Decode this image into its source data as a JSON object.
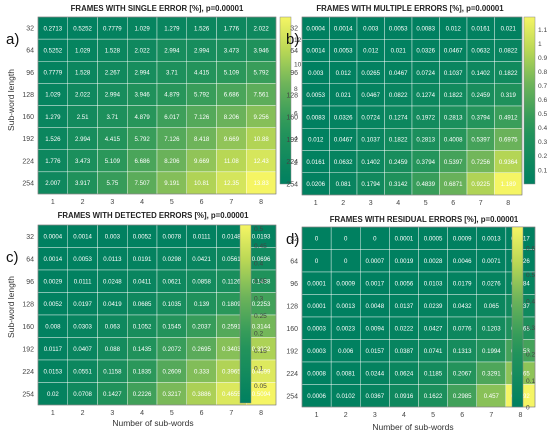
{
  "chart_data": [
    {
      "type": "heatmap",
      "panel_label": "a)",
      "title": "FRAMES WITH SINGLE ERROR [%], p=0.00001",
      "ylabel": "Sub-word length",
      "xlabel": "",
      "x_categories": [
        "1",
        "2",
        "3",
        "4",
        "5",
        "6",
        "7",
        "8"
      ],
      "y_categories": [
        "32",
        "64",
        "96",
        "128",
        "160",
        "192",
        "224",
        "254"
      ],
      "values": [
        [
          "0.2713",
          "0.5252",
          "0.7779",
          "1.029",
          "1.279",
          "1.526",
          "1.776",
          "2.022"
        ],
        [
          "0.5252",
          "1.029",
          "1.528",
          "2.022",
          "2.994",
          "2.994",
          "3.473",
          "3.946"
        ],
        [
          "0.7779",
          "1.528",
          "2.267",
          "2.994",
          "3.71",
          "4.415",
          "5.109",
          "5.792"
        ],
        [
          "1.029",
          "2.022",
          "2.994",
          "3.946",
          "4.879",
          "5.792",
          "6.686",
          "7.561"
        ],
        [
          "1.279",
          "2.51",
          "3.71",
          "4.879",
          "6.017",
          "7.126",
          "8.206",
          "9.256"
        ],
        [
          "1.526",
          "2.994",
          "4.415",
          "5.792",
          "7.126",
          "8.418",
          "9.669",
          "10.88"
        ],
        [
          "1.776",
          "3.473",
          "5.109",
          "6.686",
          "8.206",
          "9.669",
          "11.08",
          "12.43"
        ],
        [
          "2.007",
          "3.917",
          "5.75",
          "7.507",
          "9.191",
          "10.81",
          "12.35",
          "13.83"
        ]
      ],
      "colorbar_ticks": [
        "2",
        "4",
        "6",
        "8",
        "10",
        "12"
      ],
      "colorbar_range": [
        0.27,
        13.83
      ]
    },
    {
      "type": "heatmap",
      "panel_label": "b)",
      "title": "FRAMES WITH MULTIPLE ERRORS [%], p=0.00001",
      "ylabel": "",
      "xlabel": "",
      "x_categories": [
        "1",
        "2",
        "3",
        "4",
        "5",
        "6",
        "7",
        "8"
      ],
      "y_categories": [
        "32",
        "64",
        "96",
        "128",
        "160",
        "192",
        "224",
        "254"
      ],
      "values": [
        [
          "0.0004",
          "0.0014",
          "0.003",
          "0.0053",
          "0.0083",
          "0.012",
          "0.0161",
          "0.021"
        ],
        [
          "0.0014",
          "0.0053",
          "0.012",
          "0.021",
          "0.0326",
          "0.0467",
          "0.0632",
          "0.0822"
        ],
        [
          "0.003",
          "0.012",
          "0.0265",
          "0.0467",
          "0.0724",
          "0.1037",
          "0.1402",
          "0.1822"
        ],
        [
          "0.0053",
          "0.021",
          "0.0467",
          "0.0822",
          "0.1274",
          "0.1822",
          "0.2459",
          "0.319"
        ],
        [
          "0.0083",
          "0.0326",
          "0.0724",
          "0.1274",
          "0.1972",
          "0.2813",
          "0.3794",
          "0.4912"
        ],
        [
          "0.012",
          "0.0467",
          "0.1037",
          "0.1822",
          "0.2813",
          "0.4008",
          "0.5397",
          "0.6975"
        ],
        [
          "0.0161",
          "0.0632",
          "0.1402",
          "0.2459",
          "0.3794",
          "0.5397",
          "0.7256",
          "0.9364"
        ],
        [
          "0.0206",
          "0.081",
          "0.1794",
          "0.3142",
          "0.4839",
          "0.6871",
          "0.9225",
          "1.189"
        ]
      ],
      "colorbar_ticks": [
        "0.1",
        "0.2",
        "0.3",
        "0.4",
        "0.5",
        "0.6",
        "0.7",
        "0.8",
        "0.9",
        "1",
        "1.1"
      ],
      "colorbar_range": [
        0,
        1.19
      ]
    },
    {
      "type": "heatmap",
      "panel_label": "c)",
      "title": "FRAMES WITH DETECTED ERRORS [%], p=0.00001",
      "ylabel": "Sub-word length",
      "xlabel": "Number of sub-words",
      "x_categories": [
        "1",
        "2",
        "3",
        "4",
        "5",
        "6",
        "7",
        "8"
      ],
      "y_categories": [
        "32",
        "64",
        "96",
        "128",
        "160",
        "192",
        "224",
        "254"
      ],
      "values": [
        [
          "0.0004",
          "0.0014",
          "0.003",
          "0.0052",
          "0.0078",
          "0.0111",
          "0.0148",
          "0.0193"
        ],
        [
          "0.0014",
          "0.0053",
          "0.0113",
          "0.0191",
          "0.0298",
          "0.0421",
          "0.0561",
          "0.0696"
        ],
        [
          "0.0029",
          "0.0111",
          "0.0248",
          "0.0411",
          "0.0621",
          "0.0858",
          "0.1126",
          "0.1438"
        ],
        [
          "0.0052",
          "0.0197",
          "0.0419",
          "0.0685",
          "0.1035",
          "0.139",
          "0.1809",
          "0.2253"
        ],
        [
          "0.008",
          "0.0303",
          "0.063",
          "0.1052",
          "0.1545",
          "0.2037",
          "0.2591",
          "0.3144"
        ],
        [
          "0.0117",
          "0.0407",
          "0.088",
          "0.1435",
          "0.2072",
          "0.2695",
          "0.3403",
          "0.3922"
        ],
        [
          "0.0153",
          "0.0551",
          "0.1158",
          "0.1835",
          "0.2609",
          "0.333",
          "0.3965",
          "0.4699"
        ],
        [
          "0.02",
          "0.0708",
          "0.1427",
          "0.2226",
          "0.3217",
          "0.3886",
          "0.4655",
          "0.5094"
        ]
      ],
      "colorbar_ticks": [
        "0.05",
        "0.1",
        "0.15",
        "0.2",
        "0.25",
        "0.3",
        "0.35",
        "0.4",
        "0.45",
        "0.5"
      ],
      "colorbar_range": [
        0,
        0.51
      ]
    },
    {
      "type": "heatmap",
      "panel_label": "d)",
      "title": "FRAMES WITH RESIDUAL ERRORS [%], p=0.00001",
      "ylabel": "",
      "xlabel": "Number of sub-words",
      "x_categories": [
        "1",
        "2",
        "3",
        "4",
        "5",
        "6",
        "7",
        "8"
      ],
      "y_categories": [
        "32",
        "64",
        "96",
        "128",
        "160",
        "192",
        "224",
        "254"
      ],
      "values": [
        [
          "0",
          "0",
          "0",
          "0.0001",
          "0.0005",
          "0.0009",
          "0.0013",
          "0.0017"
        ],
        [
          "0",
          "0",
          "0.0007",
          "0.0019",
          "0.0028",
          "0.0046",
          "0.0071",
          "0.0126"
        ],
        [
          "0.0001",
          "0.0009",
          "0.0017",
          "0.0056",
          "0.0103",
          "0.0179",
          "0.0276",
          "0.0384"
        ],
        [
          "0.0001",
          "0.0013",
          "0.0048",
          "0.0137",
          "0.0239",
          "0.0432",
          "0.065",
          "0.0937"
        ],
        [
          "0.0003",
          "0.0023",
          "0.0094",
          "0.0222",
          "0.0427",
          "0.0776",
          "0.1203",
          "0.1768"
        ],
        [
          "0.0003",
          "0.006",
          "0.0157",
          "0.0387",
          "0.0741",
          "0.1313",
          "0.1994",
          "0.3053"
        ],
        [
          "0.0008",
          "0.0081",
          "0.0244",
          "0.0624",
          "0.1185",
          "0.2067",
          "0.3291",
          "0.4665"
        ],
        [
          "0.0006",
          "0.0102",
          "0.0367",
          "0.0916",
          "0.1622",
          "0.2985",
          "0.457",
          "0.6792"
        ]
      ],
      "colorbar_ticks": [
        "0",
        "0.1",
        "0.2",
        "0.3",
        "0.4",
        "0.5",
        "0.6"
      ],
      "colorbar_range": [
        0,
        0.68
      ]
    }
  ]
}
